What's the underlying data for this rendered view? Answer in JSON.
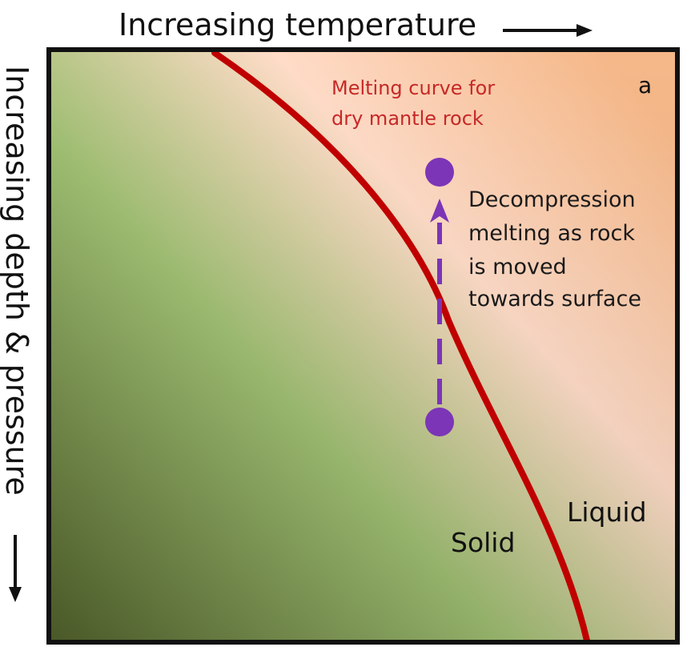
{
  "title_axis": {
    "x_label": "Increasing temperature",
    "y_label": "Increasing depth & pressure"
  },
  "panel": {
    "letter": "a"
  },
  "melting_curve": {
    "label_lines": [
      "Melting curve for",
      "dry mantle rock"
    ],
    "color": "#c00000"
  },
  "process": {
    "label_lines": [
      "Decompression",
      "melting as rock",
      "is moved",
      "towards surface"
    ],
    "marker_color": "#7b35b6"
  },
  "regions": {
    "solid": "Solid",
    "liquid": "Liquid"
  },
  "colors": {
    "solid_dark": "#4f5f2a",
    "solid_light": "#9fbf72",
    "liquid_light": "#ffdcc8",
    "liquid_dark": "#f5b889",
    "frame": "#111111"
  }
}
